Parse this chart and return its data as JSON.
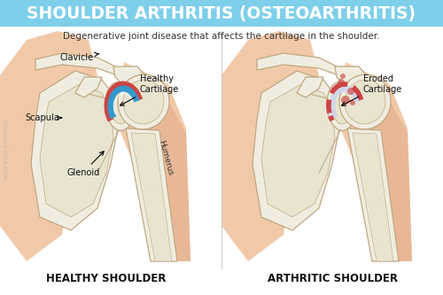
{
  "title": "SHOULDER ARTHRITIS (OSTEOARTHRITIS)",
  "title_bg": "#7ecfea",
  "title_color": "#ffffff",
  "subtitle": "Degenerative joint disease that affects the cartilage in the shoulder.",
  "subtitle_color": "#333333",
  "bg_color": "#ffffff",
  "skin_color": "#f2c9a8",
  "skin_dark": "#e8b896",
  "bone_color": "#f0ede0",
  "bone_outline": "#c0a882",
  "bone_inner": "#e8e4d0",
  "cartilage_blue": "#3399cc",
  "cartilage_red": "#cc4444",
  "cartilage_white": "#d0d8e8",
  "left_label": "HEALTHY SHOULDER",
  "right_label": "ARTHRITIC SHOULDER",
  "divider_color": "#cccccc",
  "annotation_color": "#111111",
  "watermark": "Adobe Stock | #818549036"
}
